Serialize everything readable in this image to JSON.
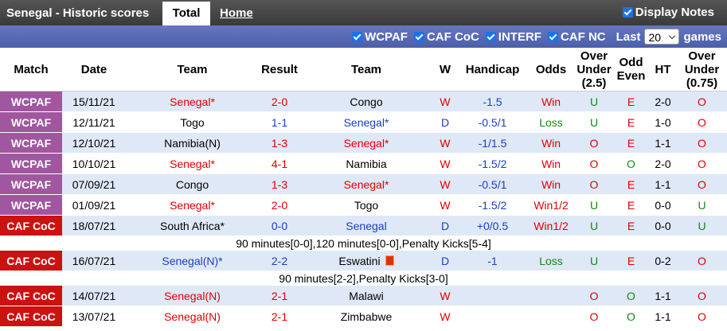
{
  "header": {
    "title": "Senegal - Historic scores",
    "tabs": [
      "Total",
      "Home"
    ],
    "display_notes": "Display Notes"
  },
  "filters": {
    "options": [
      "WCPAF",
      "CAF CoC",
      "INTERF",
      "CAF NC"
    ],
    "last_label": "Last",
    "last_value": "20",
    "games_label": "games"
  },
  "table": {
    "columns": [
      "Match",
      "Date",
      "Team",
      "Result",
      "Team",
      "W",
      "Handicap",
      "Odds",
      "Over Under (2.5)",
      "Odd Even",
      "HT",
      "Over Under (0.75)"
    ],
    "rows": [
      [
        "WCPAF",
        "15/11/21",
        "Senegal*",
        "2-0",
        "Congo",
        "W",
        "-1.5",
        "Win",
        "U",
        "E",
        "2-0",
        "O"
      ],
      [
        "WCPAF",
        "12/11/21",
        "Togo",
        "1-1",
        "Senegal*",
        "D",
        "-0.5/1",
        "Loss",
        "U",
        "E",
        "1-0",
        "O"
      ],
      [
        "WCPAF",
        "12/10/21",
        "Namibia(N)",
        "1-3",
        "Senegal*",
        "W",
        "-1/1.5",
        "Win",
        "O",
        "E",
        "1-1",
        "O"
      ],
      [
        "WCPAF",
        "10/10/21",
        "Senegal*",
        "4-1",
        "Namibia",
        "W",
        "-1.5/2",
        "Win",
        "O",
        "O",
        "2-0",
        "O"
      ],
      [
        "WCPAF",
        "07/09/21",
        "Congo",
        "1-3",
        "Senegal*",
        "W",
        "-0.5/1",
        "Win",
        "O",
        "E",
        "1-1",
        "O"
      ],
      [
        "WCPAF",
        "01/09/21",
        "Senegal*",
        "2-0",
        "Togo",
        "W",
        "-1.5/2",
        "Win1/2",
        "U",
        "E",
        "0-0",
        "U"
      ],
      [
        "CAF CoC",
        "18/07/21",
        "South Africa*",
        "0-0",
        "Senegal",
        "D",
        "+0/0.5",
        "Win1/2",
        "U",
        "E",
        "0-0",
        "U"
      ],
      "90 minutes[0-0],120 minutes[0-0],Penalty Kicks[5-4]",
      [
        "CAF CoC",
        "16/07/21",
        "Senegal(N)*",
        "2-2",
        "Eswatini",
        "D",
        "-1",
        "Loss",
        "U",
        "E",
        "0-2",
        "O"
      ],
      "90 minutes[2-2],Penalty Kicks[3-0]",
      [
        "CAF CoC",
        "14/07/21",
        "Senegal(N)",
        "2-1",
        "Malawi",
        "W",
        "",
        "",
        "O",
        "O",
        "1-1",
        "O"
      ],
      [
        "CAF CoC",
        "13/07/21",
        "Senegal(N)",
        "2-1",
        "Zimbabwe",
        "W",
        "",
        "",
        "O",
        "O",
        "1-1",
        "O"
      ]
    ]
  }
}
